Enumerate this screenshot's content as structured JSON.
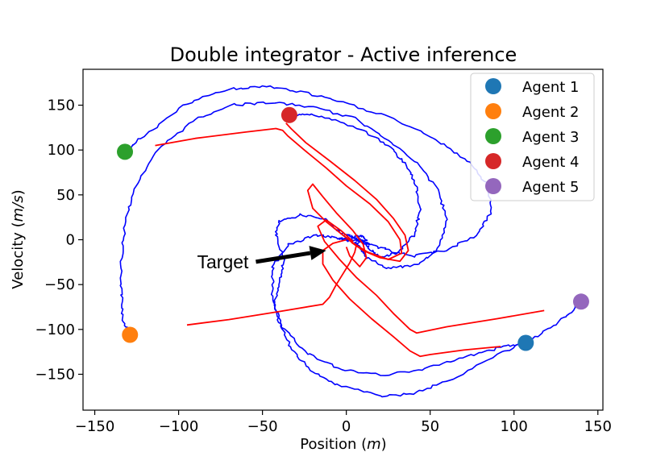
{
  "chart_data": {
    "type": "line",
    "title": "Double integrator - Active inference",
    "xlabel_prefix": "Position (",
    "xlabel_unit": "m",
    "xlabel_suffix": ")",
    "ylabel_prefix": "Velocity (",
    "ylabel_unit": "m/s",
    "ylabel_suffix": ")",
    "xlim": [
      -157,
      153
    ],
    "ylim": [
      -190,
      190
    ],
    "xticks": [
      -150,
      -100,
      -50,
      0,
      50,
      100,
      150
    ],
    "xtick_labels": [
      "−150",
      "−100",
      "−50",
      "0",
      "50",
      "100",
      "150"
    ],
    "yticks": [
      -150,
      -100,
      -50,
      0,
      50,
      100,
      150
    ],
    "ytick_labels": [
      "−150",
      "−100",
      "−50",
      "0",
      "50",
      "100",
      "150"
    ],
    "grid": false,
    "legend_position": "top-right",
    "annotation": {
      "text": "Target",
      "xytext": [
        -52,
        -30
      ],
      "xy": [
        -12,
        -12
      ]
    },
    "colors": {
      "blue_traj": "#0000ff",
      "red_traj": "#ff0000"
    },
    "agents": [
      {
        "name": "Agent 1",
        "x": 107,
        "y": -115,
        "color": "#1f77b4"
      },
      {
        "name": "Agent 2",
        "x": -129,
        "y": -106,
        "color": "#ff7f0e"
      },
      {
        "name": "Agent 3",
        "x": -132,
        "y": 98,
        "color": "#2ca02c"
      },
      {
        "name": "Agent 4",
        "x": -34,
        "y": 139,
        "color": "#d62728"
      },
      {
        "name": "Agent 5",
        "x": 140,
        "y": -69,
        "color": "#9467bd"
      }
    ],
    "series": [
      {
        "color": "#0000ff",
        "points": [
          [
            107,
            -115
          ],
          [
            92,
            -120
          ],
          [
            70,
            -131
          ],
          [
            45,
            -145
          ],
          [
            20,
            -151
          ],
          [
            -5,
            -143
          ],
          [
            -25,
            -125
          ],
          [
            -38,
            -97
          ],
          [
            -43,
            -72
          ],
          [
            -40,
            -46
          ],
          [
            -37,
            -22
          ],
          [
            -42,
            5
          ],
          [
            -40,
            20
          ],
          [
            -27,
            28
          ],
          [
            -12,
            23
          ],
          [
            -5,
            10
          ],
          [
            0,
            5
          ],
          [
            4,
            3
          ],
          [
            10,
            4
          ],
          [
            12,
            0
          ],
          [
            10,
            -2
          ],
          [
            6,
            0
          ]
        ]
      },
      {
        "color": "#0000ff",
        "points": [
          [
            -129,
            -106
          ],
          [
            -133,
            -90
          ],
          [
            -134,
            -60
          ],
          [
            -134,
            -20
          ],
          [
            -132,
            20
          ],
          [
            -126,
            60
          ],
          [
            -112,
            100
          ],
          [
            -92,
            132
          ],
          [
            -70,
            150
          ],
          [
            -45,
            153
          ],
          [
            -20,
            148
          ],
          [
            5,
            135
          ],
          [
            25,
            112
          ],
          [
            42,
            85
          ],
          [
            55,
            55
          ],
          [
            60,
            20
          ],
          [
            55,
            -10
          ],
          [
            42,
            -28
          ],
          [
            25,
            -32
          ],
          [
            12,
            -20
          ],
          [
            8,
            -7
          ],
          [
            4,
            -2
          ],
          [
            0,
            0
          ]
        ]
      },
      {
        "color": "#0000ff",
        "points": [
          [
            -132,
            98
          ],
          [
            -118,
            120
          ],
          [
            -95,
            152
          ],
          [
            -70,
            168
          ],
          [
            -48,
            171
          ],
          [
            -25,
            164
          ],
          [
            0,
            152
          ],
          [
            25,
            137
          ],
          [
            52,
            113
          ],
          [
            72,
            88
          ],
          [
            85,
            60
          ],
          [
            86,
            30
          ],
          [
            78,
            5
          ],
          [
            60,
            -12
          ],
          [
            40,
            -18
          ],
          [
            25,
            -12
          ],
          [
            14,
            -5
          ],
          [
            8,
            -2
          ],
          [
            2,
            -1
          ],
          [
            -2,
            0
          ]
        ]
      },
      {
        "color": "#0000ff",
        "points": [
          [
            -34,
            139
          ],
          [
            -22,
            140
          ],
          [
            -5,
            132
          ],
          [
            12,
            120
          ],
          [
            28,
            100
          ],
          [
            38,
            78
          ],
          [
            42,
            55
          ],
          [
            44,
            30
          ],
          [
            40,
            5
          ],
          [
            30,
            -15
          ],
          [
            20,
            -20
          ],
          [
            14,
            -10
          ],
          [
            10,
            -2
          ],
          [
            6,
            1
          ],
          [
            0,
            2
          ],
          [
            -4,
            0
          ]
        ]
      },
      {
        "color": "#0000ff",
        "points": [
          [
            140,
            -69
          ],
          [
            130,
            -87
          ],
          [
            113,
            -109
          ],
          [
            90,
            -128
          ],
          [
            60,
            -158
          ],
          [
            40,
            -172
          ],
          [
            20,
            -174
          ],
          [
            -5,
            -162
          ],
          [
            -22,
            -145
          ],
          [
            -33,
            -120
          ],
          [
            -40,
            -92
          ],
          [
            -44,
            -60
          ],
          [
            -44,
            -30
          ],
          [
            -34,
            -5
          ],
          [
            -18,
            5
          ],
          [
            -8,
            3
          ],
          [
            -2,
            1
          ],
          [
            2,
            0
          ]
        ]
      },
      {
        "color": "#ff0000",
        "points": [
          [
            -114,
            105
          ],
          [
            -90,
            113
          ],
          [
            -60,
            120
          ],
          [
            -42,
            124
          ],
          [
            -38,
            122
          ],
          [
            -35,
            116
          ],
          [
            -25,
            100
          ],
          [
            -12,
            80
          ],
          [
            0,
            60
          ],
          [
            14,
            40
          ],
          [
            25,
            20
          ],
          [
            32,
            0
          ],
          [
            33,
            -15
          ],
          [
            25,
            -22
          ],
          [
            13,
            -14
          ],
          [
            5,
            -5
          ],
          [
            -2,
            5
          ],
          [
            -12,
            20
          ],
          [
            -20,
            35
          ],
          [
            -23,
            55
          ],
          [
            -20,
            62
          ],
          [
            -14,
            48
          ],
          [
            -6,
            30
          ],
          [
            4,
            10
          ],
          [
            10,
            -5
          ],
          [
            12,
            -20
          ],
          [
            8,
            -30
          ],
          [
            2,
            -18
          ],
          [
            0,
            -8
          ]
        ]
      },
      {
        "color": "#ff0000",
        "points": [
          [
            -36,
            130
          ],
          [
            -33,
            124
          ],
          [
            -24,
            108
          ],
          [
            -10,
            88
          ],
          [
            5,
            66
          ],
          [
            18,
            45
          ],
          [
            28,
            24
          ],
          [
            35,
            5
          ],
          [
            37,
            -12
          ],
          [
            32,
            -24
          ],
          [
            20,
            -20
          ],
          [
            10,
            -12
          ],
          [
            3,
            -3
          ]
        ]
      },
      {
        "color": "#ff0000",
        "points": [
          [
            118,
            -79
          ],
          [
            90,
            -88
          ],
          [
            60,
            -97
          ],
          [
            42,
            -104
          ],
          [
            38,
            -100
          ],
          [
            28,
            -82
          ],
          [
            18,
            -62
          ],
          [
            6,
            -42
          ],
          [
            -4,
            -22
          ],
          [
            -13,
            -2
          ],
          [
            -17,
            15
          ],
          [
            -12,
            22
          ],
          [
            -3,
            10
          ],
          [
            4,
            -2
          ]
        ]
      },
      {
        "color": "#ff0000",
        "points": [
          [
            92,
            -119
          ],
          [
            70,
            -123
          ],
          [
            50,
            -128
          ],
          [
            44,
            -130
          ],
          [
            38,
            -124
          ],
          [
            28,
            -108
          ],
          [
            15,
            -88
          ],
          [
            2,
            -66
          ],
          [
            -8,
            -45
          ],
          [
            -14,
            -27
          ],
          [
            -14,
            -12
          ],
          [
            -8,
            -4
          ],
          [
            0,
            0
          ]
        ]
      },
      {
        "color": "#ff0000",
        "points": [
          [
            -95,
            -95
          ],
          [
            -70,
            -89
          ],
          [
            -40,
            -80
          ],
          [
            -14,
            -72
          ],
          [
            -10,
            -64
          ],
          [
            -6,
            -50
          ],
          [
            -2,
            -38
          ],
          [
            2,
            -26
          ],
          [
            5,
            -14
          ],
          [
            6,
            -6
          ],
          [
            2,
            -1
          ]
        ]
      }
    ]
  }
}
